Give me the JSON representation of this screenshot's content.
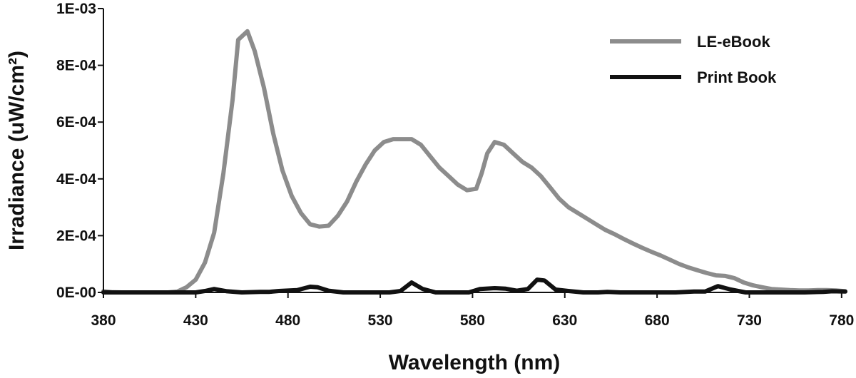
{
  "chart_data": {
    "type": "line",
    "title": "",
    "xlabel": "Wavelength (nm)",
    "ylabel": "Irradiance (uW/cm²)",
    "xlim": [
      380,
      782
    ],
    "ylim": [
      0,
      0.001
    ],
    "x_ticks": [
      "380",
      "430",
      "480",
      "530",
      "580",
      "630",
      "680",
      "730",
      "780"
    ],
    "y_ticks": [
      "0E-00",
      "2E-04",
      "4E-04",
      "6E-04",
      "8E-04",
      "1E-03"
    ],
    "legend_position": "top-right",
    "grid": false,
    "series": [
      {
        "name": "LE-eBook",
        "color": "#8c8c8c",
        "points": [
          [
            380,
            4e-06
          ],
          [
            385,
            5e-07
          ],
          [
            390,
            0
          ],
          [
            400,
            0
          ],
          [
            410,
            0
          ],
          [
            415,
            0
          ],
          [
            420,
            3e-06
          ],
          [
            425,
            1.8e-05
          ],
          [
            430,
            4.5e-05
          ],
          [
            435,
            0.000105
          ],
          [
            440,
            0.00021
          ],
          [
            445,
            0.00042
          ],
          [
            450,
            0.00068
          ],
          [
            453,
            0.00089
          ],
          [
            458,
            0.00092
          ],
          [
            462,
            0.00085
          ],
          [
            467,
            0.00072
          ],
          [
            472,
            0.00056
          ],
          [
            477,
            0.00043
          ],
          [
            482,
            0.00034
          ],
          [
            487,
            0.00028
          ],
          [
            492,
            0.00024
          ],
          [
            497,
            0.000232
          ],
          [
            502,
            0.000235
          ],
          [
            507,
            0.00027
          ],
          [
            512,
            0.00032
          ],
          [
            517,
            0.00039
          ],
          [
            522,
            0.00045
          ],
          [
            527,
            0.0005
          ],
          [
            532,
            0.00053
          ],
          [
            537,
            0.00054
          ],
          [
            542,
            0.00054
          ],
          [
            547,
            0.00054
          ],
          [
            552,
            0.00052
          ],
          [
            557,
            0.00048
          ],
          [
            562,
            0.00044
          ],
          [
            567,
            0.00041
          ],
          [
            572,
            0.00038
          ],
          [
            577,
            0.00036
          ],
          [
            582,
            0.000365
          ],
          [
            585,
            0.00042
          ],
          [
            588,
            0.00049
          ],
          [
            592,
            0.00053
          ],
          [
            597,
            0.00052
          ],
          [
            602,
            0.00049
          ],
          [
            607,
            0.00046
          ],
          [
            612,
            0.00044
          ],
          [
            617,
            0.00041
          ],
          [
            622,
            0.00037
          ],
          [
            627,
            0.00033
          ],
          [
            632,
            0.0003
          ],
          [
            637,
            0.00028
          ],
          [
            642,
            0.00026
          ],
          [
            647,
            0.00024
          ],
          [
            652,
            0.00022
          ],
          [
            657,
            0.000205
          ],
          [
            662,
            0.000188
          ],
          [
            667,
            0.000172
          ],
          [
            672,
            0.000157
          ],
          [
            677,
            0.000143
          ],
          [
            682,
            0.00013
          ],
          [
            687,
            0.000115
          ],
          [
            692,
            0.0001
          ],
          [
            697,
            8.8e-05
          ],
          [
            702,
            7.8e-05
          ],
          [
            707,
            6.8e-05
          ],
          [
            712,
            6e-05
          ],
          [
            717,
            5.8e-05
          ],
          [
            722,
            5e-05
          ],
          [
            727,
            3.5e-05
          ],
          [
            732,
            2.5e-05
          ],
          [
            737,
            1.8e-05
          ],
          [
            742,
            1.2e-05
          ],
          [
            747,
            1e-05
          ],
          [
            752,
            8e-06
          ],
          [
            757,
            7e-06
          ],
          [
            762,
            7e-06
          ],
          [
            767,
            8e-06
          ],
          [
            772,
            8e-06
          ],
          [
            777,
            7e-06
          ],
          [
            782,
            4e-06
          ]
        ]
      },
      {
        "name": "Print Book",
        "color": "#111111",
        "points": [
          [
            380,
            0
          ],
          [
            400,
            0
          ],
          [
            420,
            0
          ],
          [
            430,
            0
          ],
          [
            435,
            5e-06
          ],
          [
            440,
            1.2e-05
          ],
          [
            447,
            4e-06
          ],
          [
            455,
            0
          ],
          [
            465,
            2e-06
          ],
          [
            470,
            2e-06
          ],
          [
            475,
            5e-06
          ],
          [
            485,
            8e-06
          ],
          [
            492,
            2e-05
          ],
          [
            496,
            1.8e-05
          ],
          [
            502,
            6e-06
          ],
          [
            510,
            0
          ],
          [
            520,
            0
          ],
          [
            535,
            0
          ],
          [
            541,
            5e-06
          ],
          [
            547,
            3.5e-05
          ],
          [
            553,
            1.2e-05
          ],
          [
            560,
            0
          ],
          [
            570,
            0
          ],
          [
            578,
            0
          ],
          [
            584,
            1.2e-05
          ],
          [
            592,
            1.5e-05
          ],
          [
            598,
            1.3e-05
          ],
          [
            604,
            6e-06
          ],
          [
            610,
            1.2e-05
          ],
          [
            615,
            4.5e-05
          ],
          [
            619,
            4.2e-05
          ],
          [
            625,
            1e-05
          ],
          [
            632,
            5e-06
          ],
          [
            640,
            0
          ],
          [
            648,
            0
          ],
          [
            653,
            2e-06
          ],
          [
            660,
            0
          ],
          [
            690,
            0
          ],
          [
            700,
            3e-06
          ],
          [
            706,
            3e-06
          ],
          [
            713,
            2.2e-05
          ],
          [
            720,
            1e-05
          ],
          [
            728,
            0
          ],
          [
            740,
            0
          ],
          [
            760,
            0
          ],
          [
            770,
            2e-06
          ],
          [
            775,
            4e-06
          ],
          [
            782,
            3e-06
          ]
        ]
      }
    ]
  }
}
